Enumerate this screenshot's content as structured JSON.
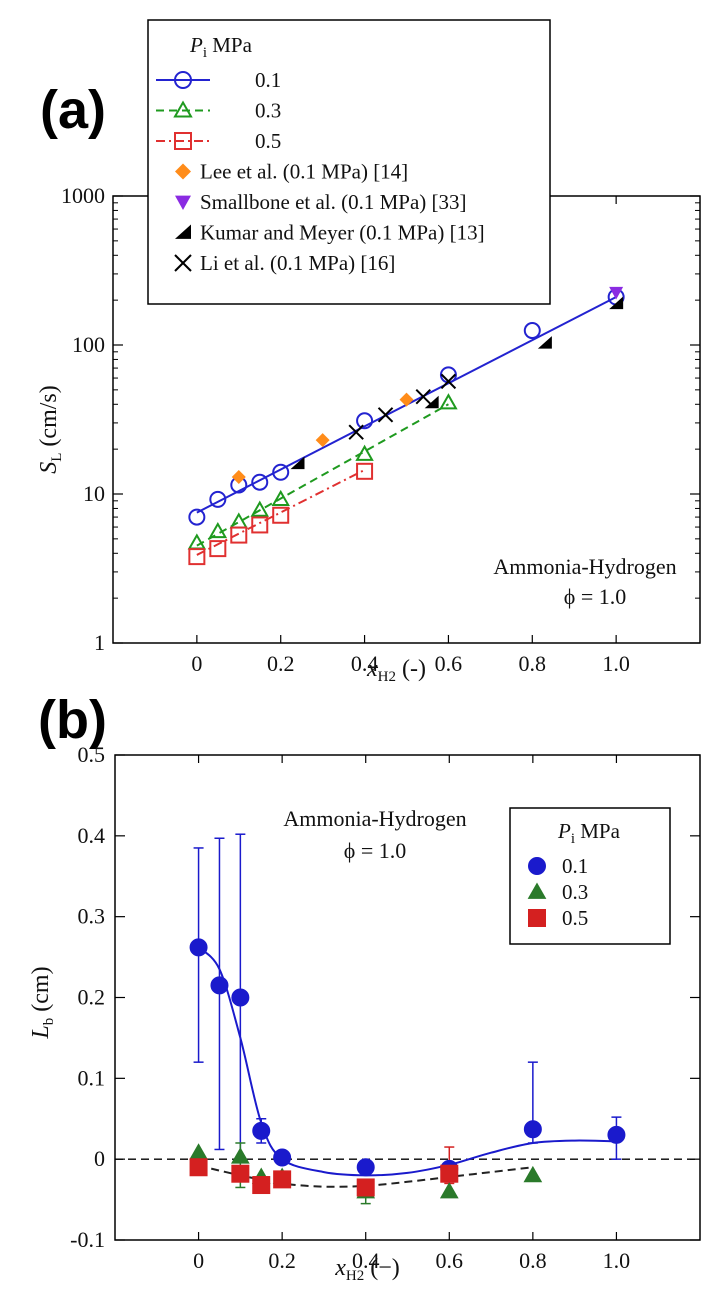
{
  "chart_data": [
    {
      "panel_label": "(a)",
      "type": "scatter",
      "xlabel": {
        "base": "x",
        "sub": "H2",
        "unit": " (-)"
      },
      "ylabel": {
        "base": "S",
        "sub": "L",
        "unit": " (cm/s)"
      },
      "xlim": [
        -0.2,
        1.2
      ],
      "ylim": [
        1,
        1000
      ],
      "yscale": "log",
      "x_ticks": [
        0,
        0.2,
        0.4,
        0.6,
        0.8,
        1.0
      ],
      "x_tick_labels": [
        "0",
        "0.2",
        "0.4",
        "0.6",
        "0.8",
        "1.0"
      ],
      "y_ticks": [
        1,
        10,
        100,
        1000
      ],
      "y_tick_labels": [
        "1",
        "10",
        "100",
        "1000"
      ],
      "annotations": [
        "Ammonia-Hydrogen",
        "ϕ = 1.0"
      ],
      "legend": {
        "position": "top-left",
        "title": {
          "base": "P",
          "sub": "i",
          "rest": " MPa"
        }
      },
      "series": [
        {
          "name": "0.1",
          "marker": "circle-open",
          "color": "#2323d0",
          "line": "solid",
          "x": [
            0,
            0.05,
            0.1,
            0.15,
            0.2,
            0.4,
            0.6,
            0.8,
            1.0
          ],
          "y": [
            7.0,
            9.2,
            11.5,
            12.0,
            14.0,
            31.0,
            63.0,
            125.0,
            210.0
          ],
          "fit": [
            [
              0,
              7.5
            ],
            [
              1.0,
              210.0
            ]
          ]
        },
        {
          "name": "0.3",
          "marker": "triangle-open",
          "color": "#1f9a1f",
          "line": "dashed",
          "x": [
            0,
            0.05,
            0.1,
            0.15,
            0.2,
            0.4,
            0.6
          ],
          "y": [
            4.7,
            5.6,
            6.5,
            7.8,
            9.2,
            18.5,
            41.0
          ],
          "fit": [
            [
              0,
              4.5
            ],
            [
              0.6,
              40.0
            ]
          ]
        },
        {
          "name": "0.5",
          "marker": "square-open",
          "color": "#e03030",
          "line": "dashdot",
          "x": [
            0,
            0.05,
            0.1,
            0.15,
            0.2,
            0.4
          ],
          "y": [
            3.8,
            4.3,
            5.3,
            6.2,
            7.2,
            14.2
          ],
          "fit": [
            [
              0,
              3.9
            ],
            [
              0.4,
              14.5
            ]
          ]
        },
        {
          "name": "Lee et al. (0.1 MPa) [14]",
          "marker": "diamond",
          "color": "#ff8c1a",
          "x": [
            0.1,
            0.3,
            0.5
          ],
          "y": [
            13.0,
            23.0,
            43.0
          ]
        },
        {
          "name": "Smallbone et al. (0.1 MPa) [33]",
          "marker": "triangle-down",
          "color": "#8a2be2",
          "x": [
            1.0
          ],
          "y": [
            225.0
          ]
        },
        {
          "name": "Kumar and Meyer (0.1 MPa) [13]",
          "marker": "half-triangle",
          "color": "#000000",
          "x": [
            0.24,
            0.56,
            0.83,
            1.0
          ],
          "y": [
            16.0,
            41.0,
            103.0,
            190.0
          ]
        },
        {
          "name": "Li et al. (0.1 MPa) [16]",
          "marker": "x",
          "color": "#000000",
          "x": [
            0.38,
            0.45,
            0.54,
            0.6
          ],
          "y": [
            26.0,
            34.0,
            45.0,
            57.0
          ]
        }
      ]
    },
    {
      "panel_label": "(b)",
      "type": "scatter",
      "xlabel": {
        "base": "x",
        "sub": "H2",
        "unit": " (−)"
      },
      "ylabel": {
        "base": "L",
        "sub": "b",
        "unit": " (cm)"
      },
      "xlim": [
        -0.2,
        1.2
      ],
      "ylim": [
        -0.1,
        0.5
      ],
      "x_ticks": [
        0,
        0.2,
        0.4,
        0.6,
        0.8,
        1.0
      ],
      "x_tick_labels": [
        "0",
        "0.2",
        "0.4",
        "0.6",
        "0.8",
        "1.0"
      ],
      "y_ticks": [
        -0.1,
        0,
        0.1,
        0.2,
        0.3,
        0.4,
        0.5
      ],
      "y_tick_labels": [
        "-0.1",
        "0",
        "0.1",
        "0.2",
        "0.3",
        "0.4",
        "0.5"
      ],
      "reference_line": 0,
      "annotations": [
        "Ammonia-Hydrogen",
        "ϕ = 1.0"
      ],
      "legend": {
        "position": "top-right",
        "title": {
          "base": "P",
          "sub": "i",
          "rest": " MPa"
        }
      },
      "series": [
        {
          "name": "0.1",
          "marker": "circle",
          "color": "#1a1acc",
          "line": "solid",
          "points": [
            {
              "x": 0,
              "y": 0.262,
              "lo": 0.12,
              "hi": 0.385
            },
            {
              "x": 0.05,
              "y": 0.215,
              "lo": 0.012,
              "hi": 0.397
            },
            {
              "x": 0.1,
              "y": 0.2,
              "lo": 0.0,
              "hi": 0.402
            },
            {
              "x": 0.15,
              "y": 0.035,
              "lo": 0.02,
              "hi": 0.05
            },
            {
              "x": 0.2,
              "y": 0.002
            },
            {
              "x": 0.4,
              "y": -0.01
            },
            {
              "x": 0.6,
              "y": -0.012
            },
            {
              "x": 0.8,
              "y": 0.037,
              "lo": 0.02,
              "hi": 0.12
            },
            {
              "x": 1.0,
              "y": 0.03,
              "lo": 0.0,
              "hi": 0.052
            }
          ],
          "curve": [
            [
              0,
              0.262
            ],
            [
              0.05,
              0.235
            ],
            [
              0.1,
              0.15
            ],
            [
              0.15,
              0.045
            ],
            [
              0.2,
              0.0
            ],
            [
              0.3,
              -0.016
            ],
            [
              0.4,
              -0.02
            ],
            [
              0.5,
              -0.017
            ],
            [
              0.6,
              -0.007
            ],
            [
              0.7,
              0.008
            ],
            [
              0.8,
              0.02
            ],
            [
              0.9,
              0.023
            ],
            [
              1.0,
              0.022
            ]
          ]
        },
        {
          "name": "0.3",
          "marker": "triangle",
          "color": "#2a7a2a",
          "points": [
            {
              "x": 0,
              "y": 0.008
            },
            {
              "x": 0.1,
              "y": 0.003,
              "lo": -0.035,
              "hi": 0.02
            },
            {
              "x": 0.15,
              "y": -0.022
            },
            {
              "x": 0.2,
              "y": -0.022
            },
            {
              "x": 0.4,
              "y": -0.04,
              "lo": -0.055,
              "hi": -0.03
            },
            {
              "x": 0.6,
              "y": -0.04
            },
            {
              "x": 0.8,
              "y": -0.02
            }
          ]
        },
        {
          "name": "0.5",
          "marker": "square",
          "color": "#d42020",
          "line": "dashed",
          "points": [
            {
              "x": 0,
              "y": -0.01
            },
            {
              "x": 0.1,
              "y": -0.018
            },
            {
              "x": 0.15,
              "y": -0.032
            },
            {
              "x": 0.2,
              "y": -0.025
            },
            {
              "x": 0.4,
              "y": -0.035
            },
            {
              "x": 0.6,
              "y": -0.018,
              "lo": -0.03,
              "hi": 0.015
            }
          ],
          "curve": [
            [
              0,
              -0.008
            ],
            [
              0.1,
              -0.02
            ],
            [
              0.2,
              -0.03
            ],
            [
              0.3,
              -0.034
            ],
            [
              0.4,
              -0.033
            ],
            [
              0.5,
              -0.028
            ],
            [
              0.6,
              -0.022
            ],
            [
              0.7,
              -0.016
            ],
            [
              0.8,
              -0.01
            ]
          ]
        }
      ]
    }
  ]
}
